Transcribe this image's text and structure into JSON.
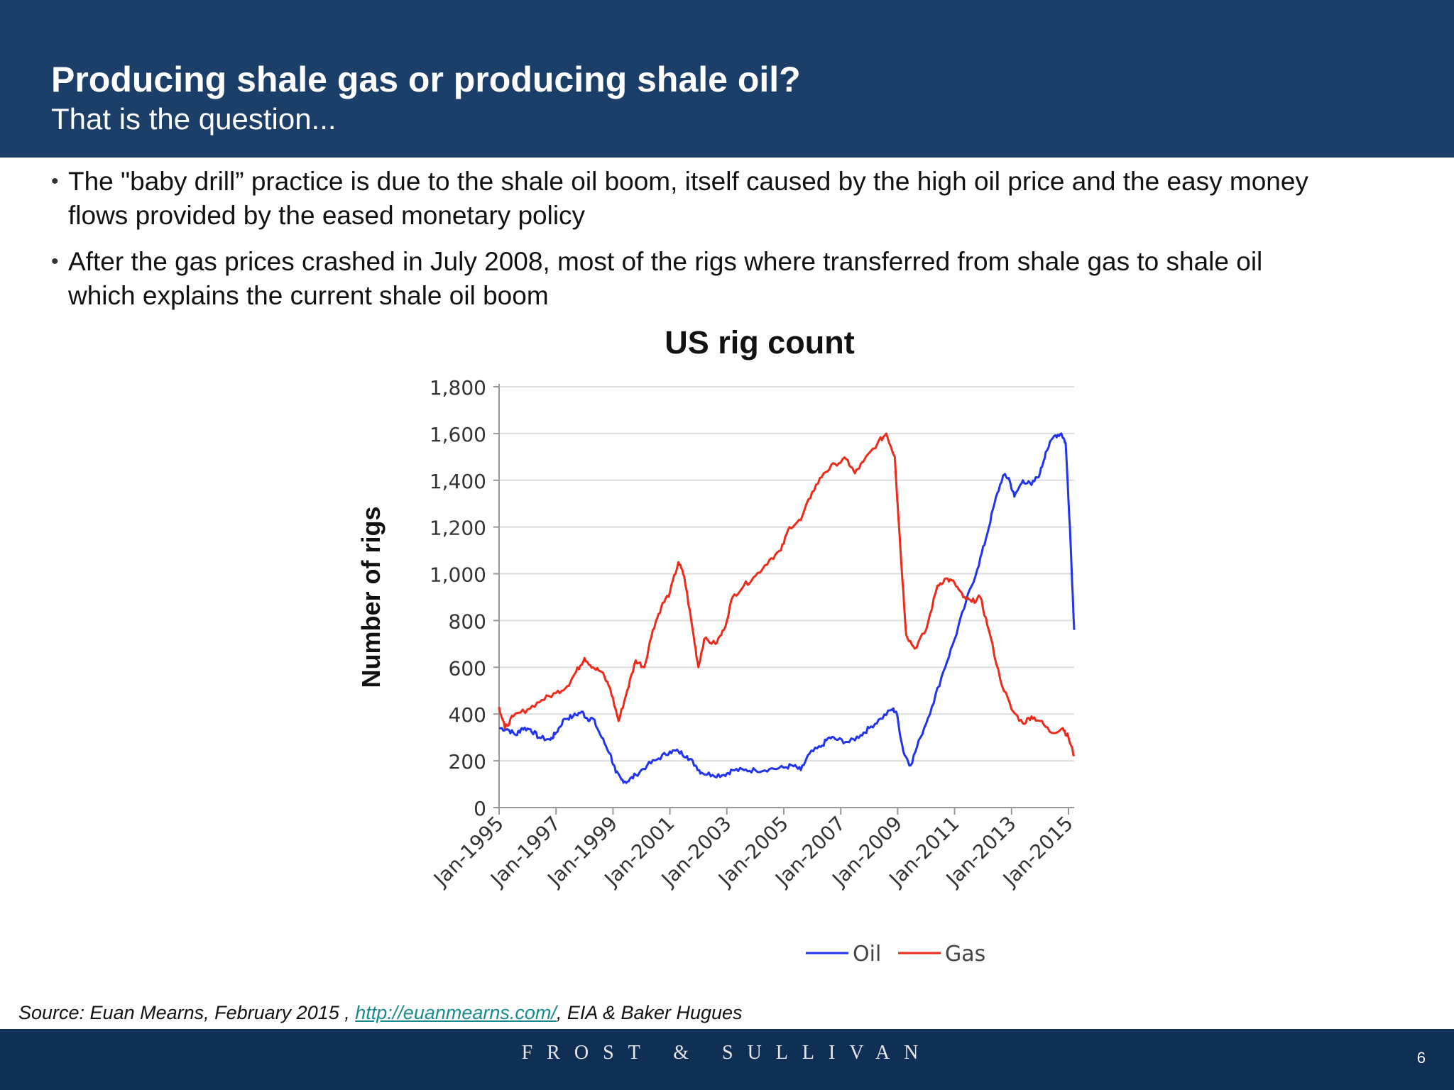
{
  "header": {
    "title": "Producing shale gas or producing shale oil?",
    "subtitle": "That is the question..."
  },
  "bullets": [
    {
      "line1": "The \"baby drill” practice is due to the shale oil boom, itself caused by the high oil price and the easy money",
      "line2": "flows provided by the eased monetary policy"
    },
    {
      "line1": "After the gas prices crashed in July 2008, most of the rigs where transferred from shale gas to shale oil",
      "line2": "which explains the current shale oil boom"
    }
  ],
  "source": {
    "prefix": "Source: Euan Mearns, February 2015 , ",
    "link": "http://euanmearns.com/",
    "suffix": ", EIA & Baker Hugues"
  },
  "footer": {
    "brand": "FROST & SULLIVAN",
    "page_number": "6"
  },
  "colors": {
    "header_bg": "#1b3f68",
    "footer_bg": "#102f54",
    "oil": "#2233ee",
    "gas": "#ee2a1a"
  },
  "chart_data": {
    "type": "line",
    "title": "US rig count",
    "ylabel": "Number of rigs",
    "xlabel": "",
    "ylim": [
      0,
      1800
    ],
    "yticks": [
      0,
      200,
      400,
      600,
      800,
      1000,
      1200,
      1400,
      1600,
      1800
    ],
    "ytick_labels": [
      "0",
      "200",
      "400",
      "600",
      "800",
      "1,000",
      "1,200",
      "1,400",
      "1,600",
      "1,800"
    ],
    "xlim": [
      1995.0,
      2015.2
    ],
    "xticks": [
      1995,
      1997,
      1999,
      2001,
      2003,
      2005,
      2007,
      2009,
      2011,
      2013,
      2015
    ],
    "xtick_labels": [
      "Jan-1995",
      "Jan-1997",
      "Jan-1999",
      "Jan-2001",
      "Jan-2003",
      "Jan-2005",
      "Jan-2007",
      "Jan-2009",
      "Jan-2011",
      "Jan-2013",
      "Jan-2015"
    ],
    "grid": true,
    "legend": "bottom-right",
    "series": [
      {
        "name": "Oil",
        "color": "#2233ee",
        "points": [
          [
            1995.0,
            340
          ],
          [
            1995.3,
            335
          ],
          [
            1995.6,
            310
          ],
          [
            1995.8,
            340
          ],
          [
            1996.1,
            335
          ],
          [
            1996.4,
            300
          ],
          [
            1996.8,
            290
          ],
          [
            1997.0,
            320
          ],
          [
            1997.3,
            380
          ],
          [
            1997.6,
            390
          ],
          [
            1997.9,
            410
          ],
          [
            1998.1,
            380
          ],
          [
            1998.3,
            380
          ],
          [
            1998.6,
            300
          ],
          [
            1998.9,
            230
          ],
          [
            1999.1,
            150
          ],
          [
            1999.3,
            120
          ],
          [
            1999.5,
            110
          ],
          [
            1999.8,
            140
          ],
          [
            2000.2,
            180
          ],
          [
            2000.6,
            210
          ],
          [
            2001.0,
            240
          ],
          [
            2001.3,
            240
          ],
          [
            2001.6,
            220
          ],
          [
            2001.9,
            180
          ],
          [
            2002.1,
            150
          ],
          [
            2002.5,
            140
          ],
          [
            2002.9,
            140
          ],
          [
            2003.2,
            160
          ],
          [
            2003.6,
            160
          ],
          [
            2004.0,
            160
          ],
          [
            2004.5,
            165
          ],
          [
            2005.0,
            170
          ],
          [
            2005.3,
            180
          ],
          [
            2005.6,
            160
          ],
          [
            2005.9,
            230
          ],
          [
            2006.3,
            260
          ],
          [
            2006.6,
            300
          ],
          [
            2006.9,
            290
          ],
          [
            2007.3,
            280
          ],
          [
            2007.7,
            310
          ],
          [
            2008.0,
            340
          ],
          [
            2008.4,
            380
          ],
          [
            2008.8,
            420
          ],
          [
            2008.95,
            410
          ],
          [
            2009.2,
            240
          ],
          [
            2009.45,
            180
          ],
          [
            2009.8,
            300
          ],
          [
            2010.2,
            430
          ],
          [
            2010.6,
            580
          ],
          [
            2011.0,
            720
          ],
          [
            2011.4,
            880
          ],
          [
            2011.8,
            1020
          ],
          [
            2012.1,
            1150
          ],
          [
            2012.4,
            1300
          ],
          [
            2012.7,
            1420
          ],
          [
            2012.9,
            1410
          ],
          [
            2013.1,
            1330
          ],
          [
            2013.4,
            1400
          ],
          [
            2013.7,
            1380
          ],
          [
            2014.0,
            1430
          ],
          [
            2014.2,
            1520
          ],
          [
            2014.5,
            1590
          ],
          [
            2014.75,
            1600
          ],
          [
            2014.9,
            1560
          ],
          [
            2015.05,
            1200
          ],
          [
            2015.2,
            760
          ]
        ]
      },
      {
        "name": "Gas",
        "color": "#ee2a1a",
        "points": [
          [
            1995.0,
            430
          ],
          [
            1995.2,
            340
          ],
          [
            1995.5,
            390
          ],
          [
            1996.0,
            420
          ],
          [
            1996.5,
            460
          ],
          [
            1997.0,
            490
          ],
          [
            1997.4,
            520
          ],
          [
            1997.7,
            580
          ],
          [
            1998.0,
            640
          ],
          [
            1998.3,
            600
          ],
          [
            1998.6,
            580
          ],
          [
            1998.9,
            510
          ],
          [
            1999.2,
            370
          ],
          [
            1999.5,
            500
          ],
          [
            1999.8,
            630
          ],
          [
            2000.1,
            600
          ],
          [
            2000.4,
            760
          ],
          [
            2000.7,
            860
          ],
          [
            2001.0,
            920
          ],
          [
            2001.3,
            1050
          ],
          [
            2001.5,
            990
          ],
          [
            2001.8,
            760
          ],
          [
            2002.0,
            600
          ],
          [
            2002.2,
            720
          ],
          [
            2002.6,
            700
          ],
          [
            2002.9,
            760
          ],
          [
            2003.2,
            900
          ],
          [
            2003.6,
            950
          ],
          [
            2004.0,
            990
          ],
          [
            2004.5,
            1060
          ],
          [
            2004.9,
            1100
          ],
          [
            2005.2,
            1200
          ],
          [
            2005.6,
            1230
          ],
          [
            2006.0,
            1350
          ],
          [
            2006.4,
            1430
          ],
          [
            2006.8,
            1470
          ],
          [
            2007.2,
            1490
          ],
          [
            2007.5,
            1430
          ],
          [
            2007.8,
            1480
          ],
          [
            2008.3,
            1560
          ],
          [
            2008.6,
            1600
          ],
          [
            2008.9,
            1500
          ],
          [
            2009.1,
            1100
          ],
          [
            2009.3,
            740
          ],
          [
            2009.6,
            680
          ],
          [
            2010.0,
            760
          ],
          [
            2010.4,
            950
          ],
          [
            2010.7,
            980
          ],
          [
            2011.0,
            960
          ],
          [
            2011.3,
            900
          ],
          [
            2011.6,
            880
          ],
          [
            2011.9,
            900
          ],
          [
            2012.2,
            760
          ],
          [
            2012.6,
            550
          ],
          [
            2013.0,
            420
          ],
          [
            2013.4,
            360
          ],
          [
            2013.7,
            390
          ],
          [
            2014.0,
            370
          ],
          [
            2014.4,
            320
          ],
          [
            2014.8,
            340
          ],
          [
            2015.0,
            300
          ],
          [
            2015.2,
            220
          ]
        ]
      }
    ]
  }
}
